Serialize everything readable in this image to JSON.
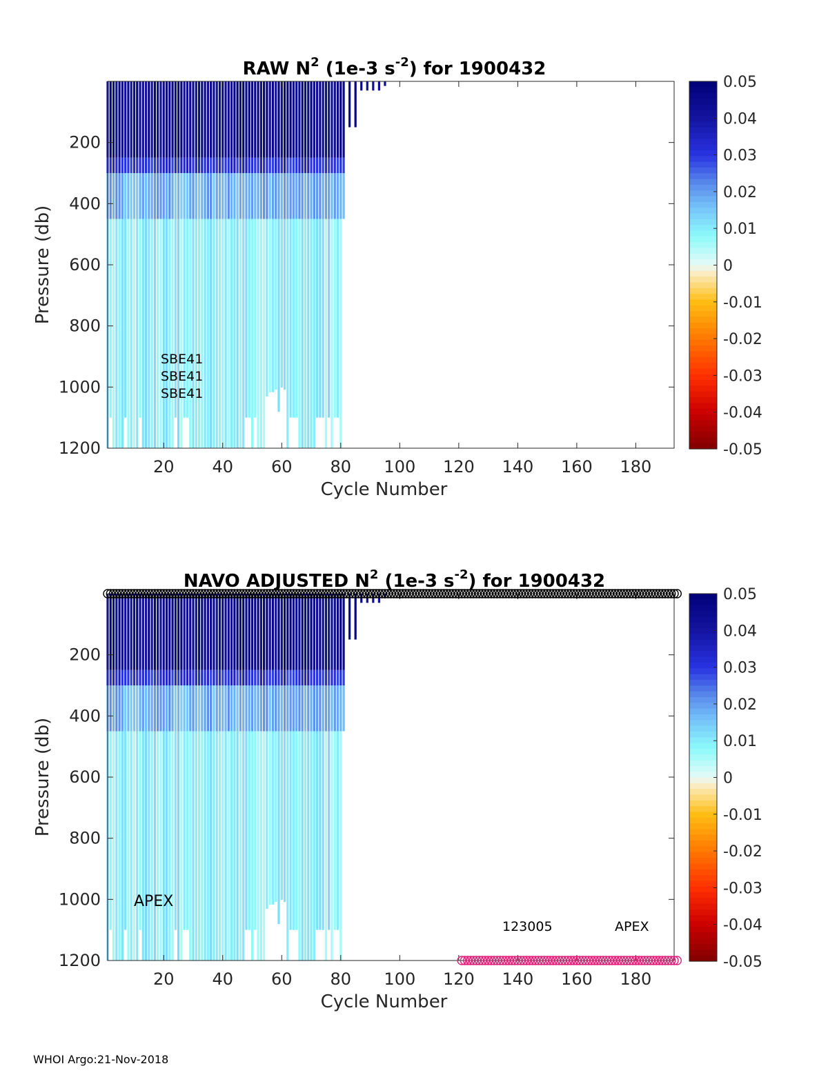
{
  "footer": "WHOI Argo:21-Nov-2018",
  "colorbar": {
    "ticks": [
      "0.05",
      "0.04",
      "0.03",
      "0.02",
      "0.01",
      "0",
      "-0.01",
      "-0.02",
      "-0.03",
      "-0.04",
      "-0.05"
    ],
    "range": [
      -0.05,
      0.05
    ],
    "colormap": "blue-cyan-white-yellow-red"
  },
  "chart_data": [
    {
      "type": "heatmap",
      "title_parts": {
        "prefix": "RAW N",
        "sup1": "2",
        "mid": " (1e-3 s",
        "sup2": "-2",
        "suffix": ") for 1900432"
      },
      "xlabel": "Cycle Number",
      "ylabel": "Pressure (db)",
      "xlim": [
        1,
        193
      ],
      "ylim": [
        1200,
        0
      ],
      "x_ticks": [
        "20",
        "40",
        "60",
        "80",
        "100",
        "120",
        "140",
        "160",
        "180"
      ],
      "y_ticks": [
        "200",
        "400",
        "600",
        "800",
        "1000",
        "1200"
      ],
      "profile_cycles": [
        1,
        96
      ],
      "full_depth_cycles": [
        3,
        80
      ],
      "max_pressure": 1200,
      "value_by_pressure_band": [
        {
          "p": [
            0,
            250
          ],
          "value": 0.045
        },
        {
          "p": [
            250,
            300
          ],
          "value": 0.032
        },
        {
          "p": [
            300,
            450
          ],
          "value": 0.018
        },
        {
          "p": [
            450,
            1200
          ],
          "value": 0.009
        }
      ],
      "annotations": [
        "SBE41",
        "SBE41",
        "SBE41"
      ],
      "markers": []
    },
    {
      "type": "heatmap",
      "title_parts": {
        "prefix": "NAVO  ADJUSTED N",
        "sup1": "2",
        "mid": " (1e-3 s",
        "sup2": "-2",
        "suffix": ") for 1900432"
      },
      "xlabel": "Cycle Number",
      "ylabel": "Pressure (db)",
      "xlim": [
        1,
        193
      ],
      "ylim": [
        1200,
        0
      ],
      "x_ticks": [
        "20",
        "40",
        "60",
        "80",
        "100",
        "120",
        "140",
        "160",
        "180"
      ],
      "y_ticks": [
        "200",
        "400",
        "600",
        "800",
        "1000",
        "1200"
      ],
      "profile_cycles": [
        1,
        96
      ],
      "full_depth_cycles": [
        3,
        80
      ],
      "max_pressure": 1200,
      "value_by_pressure_band": [
        {
          "p": [
            0,
            250
          ],
          "value": 0.045
        },
        {
          "p": [
            250,
            300
          ],
          "value": 0.032
        },
        {
          "p": [
            300,
            450
          ],
          "value": 0.018
        },
        {
          "p": [
            450,
            1200
          ],
          "value": 0.009
        }
      ],
      "annotations": [
        "APEX",
        "123005",
        "APEX"
      ],
      "markers": [
        {
          "series": "top-circles",
          "pressure": 0,
          "cycles": [
            1,
            194
          ],
          "color": "#000000"
        },
        {
          "series": "bottom-circles",
          "pressure": 1200,
          "cycles": [
            121,
            194
          ],
          "color": "#e0207a"
        }
      ]
    }
  ]
}
